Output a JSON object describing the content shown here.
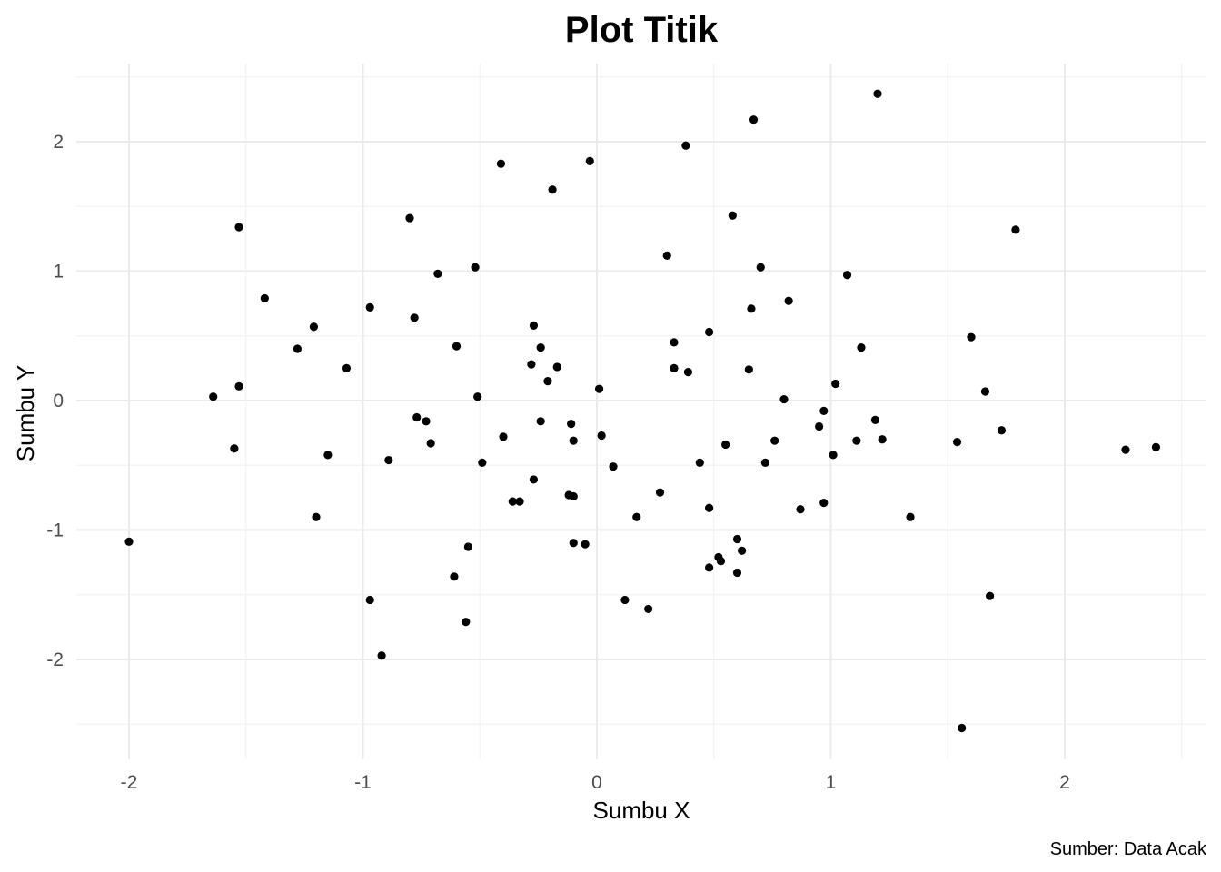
{
  "chart_data": {
    "type": "scatter",
    "title": "Plot Titik",
    "xlabel": "Sumbu X",
    "ylabel": "Sumbu Y",
    "caption": "Sumber: Data Acak",
    "xlim": [
      -2.2,
      2.6
    ],
    "ylim": [
      -2.6,
      2.5
    ],
    "xticks": [
      -2,
      -1,
      0,
      1,
      2
    ],
    "xtick_labels": [
      "-2",
      "-1",
      "0",
      "1",
      "2"
    ],
    "yticks": [
      -2,
      -1,
      0,
      1,
      2
    ],
    "ytick_labels": [
      "-2",
      "-1",
      "0",
      "1",
      "2"
    ],
    "grid": true,
    "legend": "none",
    "point_color": "#000000",
    "points": [
      {
        "x": -2.0,
        "y": -1.09
      },
      {
        "x": -1.64,
        "y": 0.03
      },
      {
        "x": -1.55,
        "y": -0.37
      },
      {
        "x": -1.53,
        "y": 1.34
      },
      {
        "x": -1.53,
        "y": 0.11
      },
      {
        "x": -1.42,
        "y": 0.79
      },
      {
        "x": -1.28,
        "y": 0.4
      },
      {
        "x": -1.21,
        "y": 0.57
      },
      {
        "x": -1.2,
        "y": -0.9
      },
      {
        "x": -1.15,
        "y": -0.42
      },
      {
        "x": -1.07,
        "y": 0.25
      },
      {
        "x": -0.97,
        "y": 0.72
      },
      {
        "x": -0.97,
        "y": -1.54
      },
      {
        "x": -0.92,
        "y": -1.97
      },
      {
        "x": -0.89,
        "y": -0.46
      },
      {
        "x": -0.8,
        "y": 1.41
      },
      {
        "x": -0.78,
        "y": 0.64
      },
      {
        "x": -0.77,
        "y": -0.13
      },
      {
        "x": -0.73,
        "y": -0.16
      },
      {
        "x": -0.71,
        "y": -0.33
      },
      {
        "x": -0.68,
        "y": 0.98
      },
      {
        "x": -0.61,
        "y": -1.36
      },
      {
        "x": -0.6,
        "y": 0.42
      },
      {
        "x": -0.56,
        "y": -1.71
      },
      {
        "x": -0.55,
        "y": -1.13
      },
      {
        "x": -0.52,
        "y": 1.03
      },
      {
        "x": -0.51,
        "y": 0.03
      },
      {
        "x": -0.49,
        "y": -0.48
      },
      {
        "x": -0.41,
        "y": 1.83
      },
      {
        "x": -0.4,
        "y": -0.28
      },
      {
        "x": -0.36,
        "y": -0.78
      },
      {
        "x": -0.33,
        "y": -0.78
      },
      {
        "x": -0.28,
        "y": 0.28
      },
      {
        "x": -0.27,
        "y": 0.58
      },
      {
        "x": -0.27,
        "y": -0.61
      },
      {
        "x": -0.24,
        "y": 0.41
      },
      {
        "x": -0.24,
        "y": -0.16
      },
      {
        "x": -0.21,
        "y": 0.15
      },
      {
        "x": -0.19,
        "y": 1.63
      },
      {
        "x": -0.17,
        "y": 0.26
      },
      {
        "x": -0.12,
        "y": -0.73
      },
      {
        "x": -0.11,
        "y": -0.18
      },
      {
        "x": -0.1,
        "y": -0.31
      },
      {
        "x": -0.1,
        "y": -0.74
      },
      {
        "x": -0.1,
        "y": -1.1
      },
      {
        "x": -0.05,
        "y": -1.11
      },
      {
        "x": -0.03,
        "y": 1.85
      },
      {
        "x": 0.01,
        "y": 0.09
      },
      {
        "x": 0.02,
        "y": -0.27
      },
      {
        "x": 0.07,
        "y": -0.51
      },
      {
        "x": 0.12,
        "y": -1.54
      },
      {
        "x": 0.17,
        "y": -0.9
      },
      {
        "x": 0.22,
        "y": -1.61
      },
      {
        "x": 0.27,
        "y": -0.71
      },
      {
        "x": 0.3,
        "y": 1.12
      },
      {
        "x": 0.33,
        "y": 0.45
      },
      {
        "x": 0.33,
        "y": 0.25
      },
      {
        "x": 0.38,
        "y": 1.97
      },
      {
        "x": 0.39,
        "y": 0.22
      },
      {
        "x": 0.44,
        "y": -0.48
      },
      {
        "x": 0.48,
        "y": 0.53
      },
      {
        "x": 0.48,
        "y": -0.83
      },
      {
        "x": 0.48,
        "y": -1.29
      },
      {
        "x": 0.52,
        "y": -1.21
      },
      {
        "x": 0.53,
        "y": -1.24
      },
      {
        "x": 0.55,
        "y": -0.34
      },
      {
        "x": 0.58,
        "y": 1.43
      },
      {
        "x": 0.6,
        "y": -1.07
      },
      {
        "x": 0.6,
        "y": -1.33
      },
      {
        "x": 0.62,
        "y": -1.16
      },
      {
        "x": 0.65,
        "y": 0.24
      },
      {
        "x": 0.66,
        "y": 0.71
      },
      {
        "x": 0.67,
        "y": 2.17
      },
      {
        "x": 0.7,
        "y": 1.03
      },
      {
        "x": 0.72,
        "y": -0.48
      },
      {
        "x": 0.76,
        "y": -0.31
      },
      {
        "x": 0.8,
        "y": 0.01
      },
      {
        "x": 0.82,
        "y": 0.77
      },
      {
        "x": 0.87,
        "y": -0.84
      },
      {
        "x": 0.95,
        "y": -0.2
      },
      {
        "x": 0.97,
        "y": -0.08
      },
      {
        "x": 0.97,
        "y": -0.79
      },
      {
        "x": 1.01,
        "y": -0.42
      },
      {
        "x": 1.02,
        "y": 0.13
      },
      {
        "x": 1.07,
        "y": 0.97
      },
      {
        "x": 1.11,
        "y": -0.31
      },
      {
        "x": 1.13,
        "y": 0.41
      },
      {
        "x": 1.19,
        "y": -0.15
      },
      {
        "x": 1.2,
        "y": 2.37
      },
      {
        "x": 1.22,
        "y": -0.3
      },
      {
        "x": 1.34,
        "y": -0.9
      },
      {
        "x": 1.54,
        "y": -0.32
      },
      {
        "x": 1.56,
        "y": -2.53
      },
      {
        "x": 1.6,
        "y": 0.49
      },
      {
        "x": 1.66,
        "y": 0.07
      },
      {
        "x": 1.68,
        "y": -1.51
      },
      {
        "x": 1.73,
        "y": -0.23
      },
      {
        "x": 1.79,
        "y": 1.32
      },
      {
        "x": 2.26,
        "y": -0.38
      },
      {
        "x": 2.39,
        "y": -0.36
      }
    ]
  }
}
